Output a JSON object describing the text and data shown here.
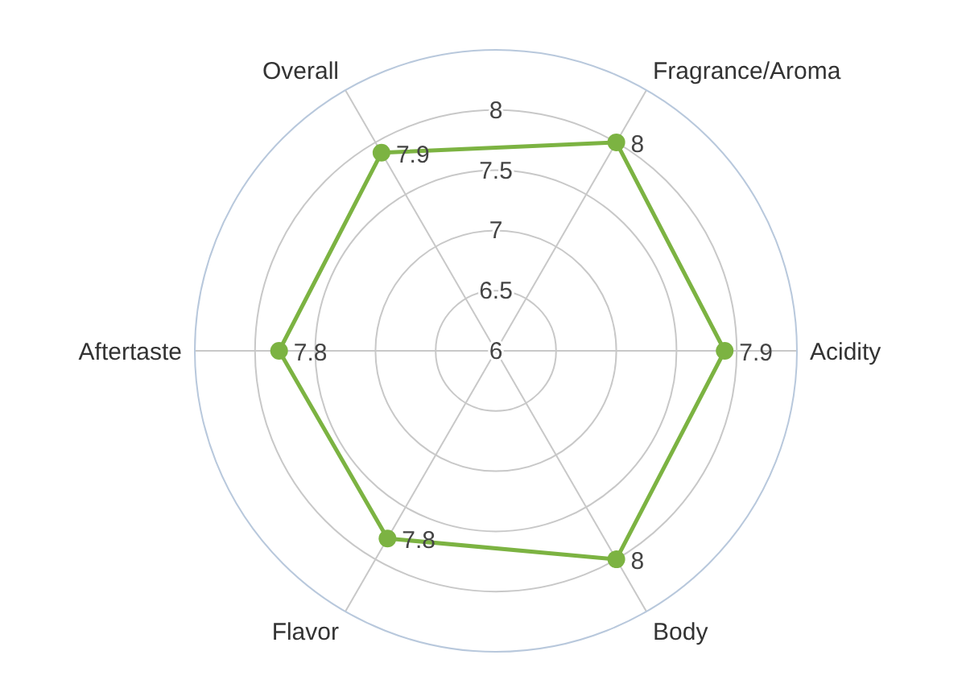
{
  "chart_data": {
    "type": "radar",
    "categories": [
      "Fragrance/Aroma",
      "Acidity",
      "Body",
      "Flavor",
      "Aftertaste",
      "Overall"
    ],
    "series": [
      {
        "color": "#7cb342",
        "values": [
          8,
          7.9,
          8,
          7.8,
          7.8,
          7.9
        ]
      }
    ],
    "ylim": [
      6,
      8.5
    ],
    "yticks": [
      6,
      6.5,
      7,
      7.5,
      8
    ],
    "grid": true,
    "marker": "circle",
    "data_labels": true
  }
}
